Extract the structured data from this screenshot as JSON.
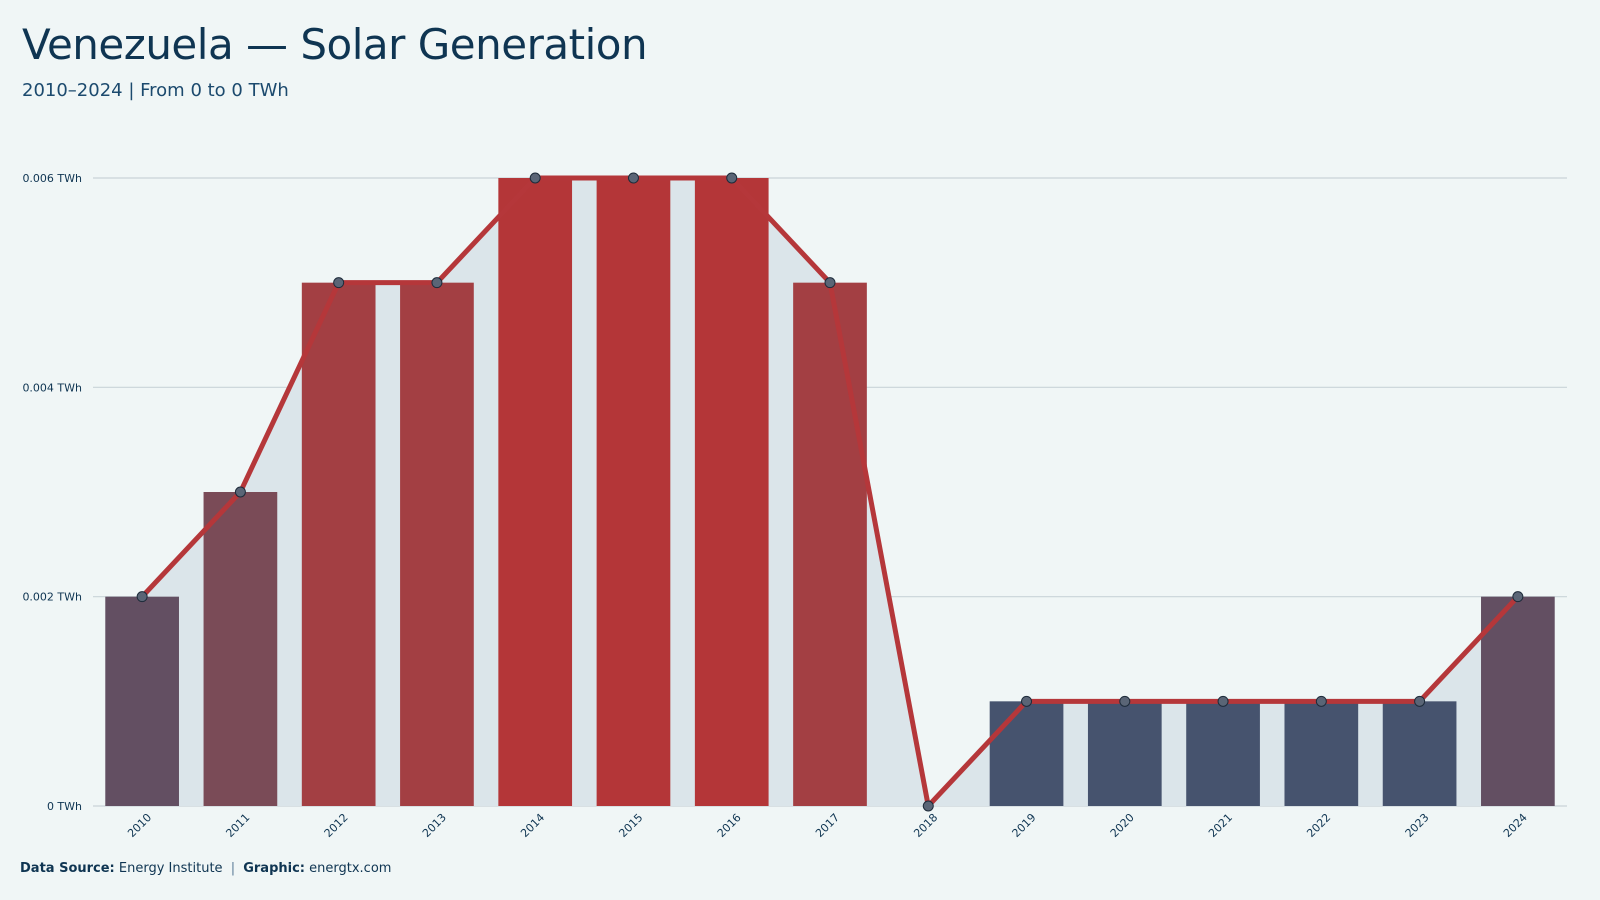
{
  "header": {
    "title": "Venezuela — Solar Generation",
    "subtitle": "2010–2024 | From 0 to 0 TWh"
  },
  "footer": {
    "source_label": "Data Source:",
    "source_value": "Energy Institute",
    "separator": "|",
    "graphic_label": "Graphic:",
    "graphic_value": "energtx.com"
  },
  "colors": {
    "background": "#f0f6f6",
    "area_fill": "#dbe5ea",
    "line": "#b5373a",
    "gridline": "#c9d3d8",
    "text": "#0f3552",
    "marker_fill": "#5a6576"
  },
  "chart_data": {
    "type": "bar",
    "overlay": "line-with-area",
    "title": "Venezuela — Solar Generation",
    "subtitle": "2010–2024 | From 0 to 0 TWh",
    "xlabel": "",
    "ylabel": "",
    "categories": [
      "2010",
      "2011",
      "2012",
      "2013",
      "2014",
      "2015",
      "2016",
      "2017",
      "2018",
      "2019",
      "2020",
      "2021",
      "2022",
      "2023",
      "2024"
    ],
    "values": [
      0.002,
      0.003,
      0.005,
      0.005,
      0.006,
      0.006,
      0.006,
      0.005,
      0.0,
      0.001,
      0.001,
      0.001,
      0.001,
      0.001,
      0.002
    ],
    "bar_colors": [
      "#634f62",
      "#7a4b57",
      "#a33f43",
      "#a33f43",
      "#b43638",
      "#b43638",
      "#b43638",
      "#a33f43",
      "#46536e",
      "#46536e",
      "#46536e",
      "#46536e",
      "#46536e",
      "#46536e",
      "#634f62"
    ],
    "ylim": [
      0,
      0.006
    ],
    "yticks": [
      0,
      0.002,
      0.004,
      0.006
    ],
    "ytick_labels": [
      "0 TWh",
      "0.002 TWh",
      "0.004 TWh",
      "0.006 TWh"
    ],
    "unit": "TWh",
    "grid": true,
    "legend": "none"
  }
}
